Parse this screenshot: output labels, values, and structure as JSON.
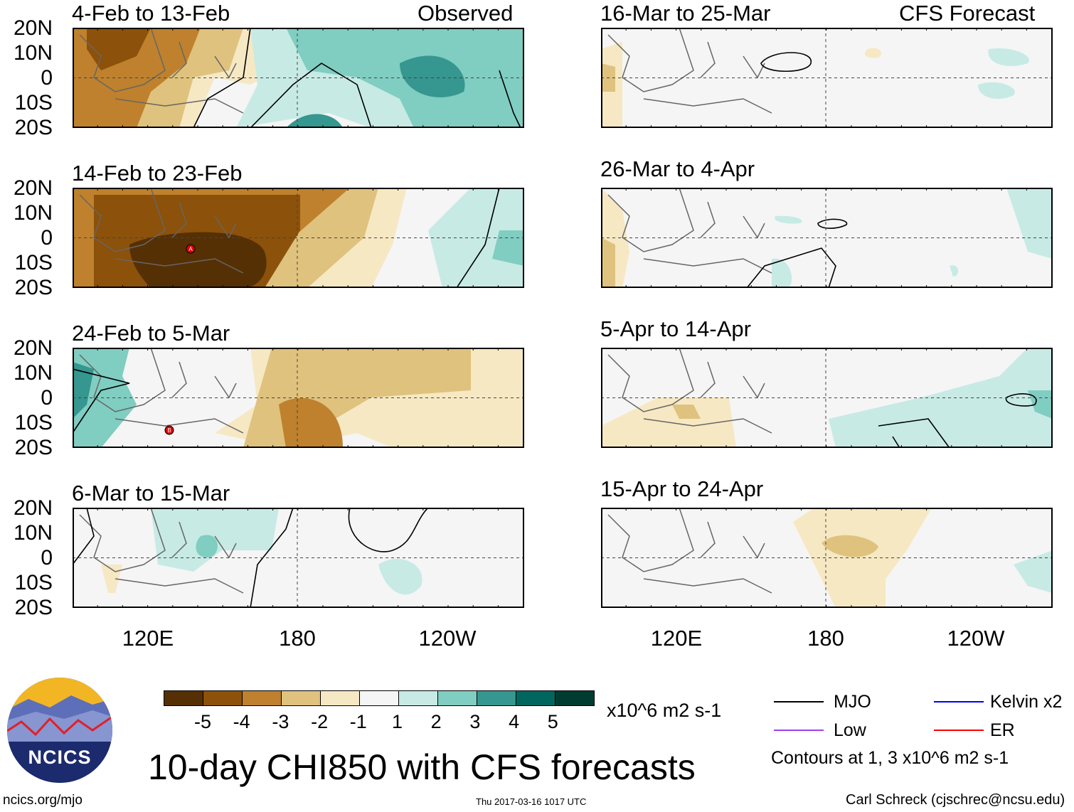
{
  "header": {
    "left_label": "Observed",
    "right_label": "CFS Forecast"
  },
  "observed_panels": [
    {
      "title": "4-Feb to 13-Feb"
    },
    {
      "title": "14-Feb to 23-Feb"
    },
    {
      "title": "24-Feb to 5-Mar"
    },
    {
      "title": "6-Mar to 15-Mar"
    }
  ],
  "forecast_panels": [
    {
      "title": "16-Mar to 25-Mar"
    },
    {
      "title": "26-Mar to 4-Apr"
    },
    {
      "title": "5-Apr to 14-Apr"
    },
    {
      "title": "15-Apr to 24-Apr"
    }
  ],
  "lat_labels": [
    "20N",
    "10N",
    "0",
    "10S",
    "20S"
  ],
  "lon_labels": [
    "120E",
    "180",
    "120W"
  ],
  "colorbar": {
    "colors": [
      "#553005",
      "#8c510a",
      "#bf812d",
      "#dfc27d",
      "#f6e8c3",
      "#f5f5f5",
      "#c7eae5",
      "#80cdc1",
      "#35978f",
      "#01665e",
      "#003c30"
    ],
    "labels": [
      "-5",
      "-4",
      "-3",
      "-2",
      "-1",
      "1",
      "2",
      "3",
      "4",
      "5"
    ],
    "units": "x10^6 m2 s-1"
  },
  "legend": {
    "items": [
      {
        "label": "MJO",
        "color": "#000000"
      },
      {
        "label": "Kelvin x2",
        "color": "#0000ff"
      },
      {
        "label": "Low",
        "color": "#a040f0"
      },
      {
        "label": "ER",
        "color": "#ff0000"
      }
    ],
    "contours_note": "Contours at 1, 3 x10^6 m2 s-1"
  },
  "footer": {
    "title": "10-day CHI850 with CFS forecasts",
    "logo_text": "NCICS",
    "url": "ncics.org/mjo",
    "timestamp": "Thu 2017-03-16 1017 UTC",
    "credit": "Carl Schreck (cjschrec@ncsu.edu)"
  },
  "storm_markers": [
    "A",
    "B"
  ]
}
